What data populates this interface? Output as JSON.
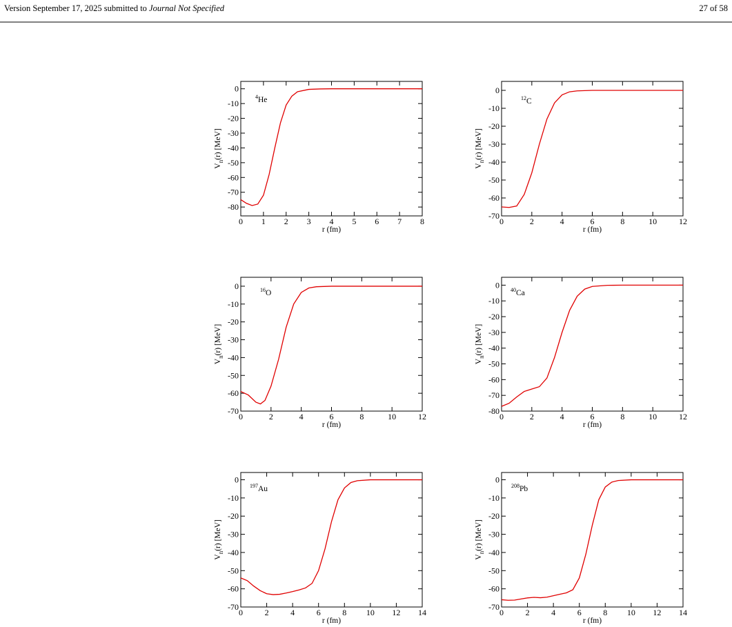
{
  "header": {
    "left": "Version September 17, 2025 submitted to",
    "journal": "Journal Not Specified",
    "page": "27 of 58"
  },
  "chart_data": [
    {
      "type": "line",
      "nuclide": {
        "mass": "4",
        "symbol": "He"
      },
      "xlabel": "r (fm)",
      "ylabel": {
        "main": "V",
        "sub": "n",
        "rest": "(r)  [MeV]"
      },
      "color": "#e00000",
      "x": [
        0,
        0.25,
        0.5,
        0.75,
        1,
        1.25,
        1.5,
        1.75,
        2,
        2.25,
        2.5,
        3,
        3.5,
        4,
        5,
        6,
        7,
        8
      ],
      "values": [
        -75,
        -77.5,
        -79,
        -78,
        -72,
        -58,
        -40,
        -23,
        -11,
        -5,
        -2,
        -0.4,
        -0.1,
        0,
        0,
        0,
        0,
        0
      ],
      "xlim": [
        0,
        8
      ],
      "ylim": [
        -86,
        5
      ],
      "xticks": [
        0,
        1,
        2,
        3,
        4,
        5,
        6,
        7,
        8
      ],
      "yticks": [
        0,
        -10,
        -20,
        -30,
        -40,
        -50,
        -60,
        -70,
        -80
      ]
    },
    {
      "type": "line",
      "nuclide": {
        "mass": "12",
        "symbol": "C"
      },
      "xlabel": "r (fm)",
      "ylabel": {
        "main": "V",
        "sub": "n",
        "rest": "(r)  [MeV]"
      },
      "color": "#e00000",
      "x": [
        0,
        0.5,
        1,
        1.5,
        2,
        2.5,
        3,
        3.5,
        4,
        4.5,
        5,
        6,
        8,
        10,
        12
      ],
      "values": [
        -65,
        -65.3,
        -64.5,
        -58,
        -46,
        -30,
        -16,
        -7,
        -2.5,
        -0.8,
        -0.3,
        0,
        0,
        0,
        0
      ],
      "xlim": [
        0,
        12
      ],
      "ylim": [
        -70,
        5
      ],
      "xticks": [
        0,
        2,
        4,
        6,
        8,
        10,
        12
      ],
      "yticks": [
        0,
        -10,
        -20,
        -30,
        -40,
        -50,
        -60,
        -70
      ]
    },
    {
      "type": "line",
      "nuclide": {
        "mass": "16",
        "symbol": "O"
      },
      "xlabel": "r (fm)",
      "ylabel": {
        "main": "V",
        "sub": "n",
        "rest": "(r)  [MeV]"
      },
      "color": "#e00000",
      "x": [
        0,
        0.5,
        1,
        1.3,
        1.6,
        2,
        2.5,
        3,
        3.5,
        4,
        4.5,
        5,
        6,
        8,
        10,
        12
      ],
      "values": [
        -59,
        -61,
        -65,
        -66,
        -64,
        -56,
        -41,
        -23,
        -10,
        -3.5,
        -1,
        -0.3,
        0,
        0,
        0,
        0
      ],
      "xlim": [
        0,
        12
      ],
      "ylim": [
        -70,
        5
      ],
      "xticks": [
        0,
        2,
        4,
        6,
        8,
        10,
        12
      ],
      "yticks": [
        0,
        -10,
        -20,
        -30,
        -40,
        -50,
        -60,
        -70
      ]
    },
    {
      "type": "line",
      "nuclide": {
        "mass": "40",
        "symbol": "Ca"
      },
      "xlabel": "r (fm)",
      "ylabel": {
        "main": "V",
        "sub": "n",
        "rest": "(r)  [MeV]"
      },
      "color": "#e00000",
      "x": [
        0,
        0.5,
        1,
        1.5,
        2,
        2.5,
        3,
        3.5,
        4,
        4.5,
        5,
        5.5,
        6,
        7,
        8,
        10,
        12
      ],
      "values": [
        -77,
        -75,
        -71,
        -67.5,
        -66,
        -64.5,
        -59,
        -46,
        -30,
        -16,
        -7,
        -2.5,
        -0.8,
        -0.1,
        0,
        0,
        0
      ],
      "xlim": [
        0,
        12
      ],
      "ylim": [
        -80,
        5
      ],
      "xticks": [
        0,
        2,
        4,
        6,
        8,
        10,
        12
      ],
      "yticks": [
        0,
        -10,
        -20,
        -30,
        -40,
        -50,
        -60,
        -70,
        -80
      ]
    },
    {
      "type": "line",
      "nuclide": {
        "mass": "197",
        "symbol": "Au"
      },
      "xlabel": "r (fm)",
      "ylabel": {
        "main": "V",
        "sub": "n",
        "rest": "(r)  [MeV]"
      },
      "color": "#e00000",
      "x": [
        0,
        0.5,
        1,
        1.5,
        2,
        2.5,
        3,
        3.5,
        4,
        4.5,
        5,
        5.5,
        6,
        6.5,
        7,
        7.5,
        8,
        8.5,
        9,
        10,
        12,
        14
      ],
      "values": [
        -54,
        -55.5,
        -58.5,
        -61,
        -62.7,
        -63.2,
        -63,
        -62.3,
        -61.5,
        -60.6,
        -59.5,
        -57,
        -50,
        -38,
        -23,
        -11,
        -4.5,
        -1.5,
        -0.5,
        0,
        0,
        0
      ],
      "xlim": [
        0,
        14
      ],
      "ylim": [
        -70,
        4
      ],
      "xticks": [
        0,
        2,
        4,
        6,
        8,
        10,
        12,
        14
      ],
      "yticks": [
        0,
        -10,
        -20,
        -30,
        -40,
        -50,
        -60,
        -70
      ]
    },
    {
      "type": "line",
      "nuclide": {
        "mass": "208",
        "symbol": "Pb"
      },
      "xlabel": "r (fm)",
      "ylabel": {
        "main": "V",
        "sub": "n",
        "rest": "(r)  [MeV]"
      },
      "color": "#e00000",
      "x": [
        0,
        0.5,
        1,
        1.5,
        2,
        2.5,
        3,
        3.5,
        4,
        4.5,
        5,
        5.5,
        6,
        6.5,
        7,
        7.5,
        8,
        8.5,
        9,
        10,
        12,
        14
      ],
      "values": [
        -66,
        -66.3,
        -66.2,
        -65.6,
        -65,
        -64.7,
        -64.9,
        -64.6,
        -63.8,
        -63,
        -62.2,
        -60.5,
        -54,
        -41,
        -25,
        -11,
        -4,
        -1.3,
        -0.4,
        0,
        0,
        0
      ],
      "xlim": [
        0,
        14
      ],
      "ylim": [
        -70,
        4
      ],
      "xticks": [
        0,
        2,
        4,
        6,
        8,
        10,
        12,
        14
      ],
      "yticks": [
        0,
        -10,
        -20,
        -30,
        -40,
        -50,
        -60,
        -70
      ]
    }
  ]
}
